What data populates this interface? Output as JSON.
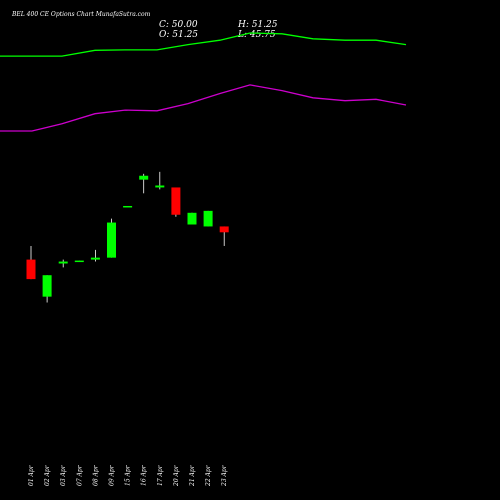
{
  "chart_data": {
    "type": "candlestick",
    "title": "BEL 400 CE Options Chart MunafaSutra.com",
    "ohlc_readout": {
      "c_label": "C: 50.00",
      "o_label": "O: 51.25",
      "h_label": "H: 51.25",
      "l_label": "L: 45.75"
    },
    "ylim": [
      0,
      150
    ],
    "candles": [
      {
        "date": "01 Apr",
        "open": 72,
        "close": 62,
        "high": 79,
        "low": 62
      },
      {
        "date": "02 Apr",
        "open": 53,
        "close": 64,
        "high": 64,
        "low": 50
      },
      {
        "date": "03 Apr",
        "open": 70,
        "close": 71,
        "high": 72,
        "low": 68
      },
      {
        "date": "07 Apr",
        "open": 71,
        "close": 71.5,
        "high": 71.5,
        "low": 71
      },
      {
        "date": "08 Apr",
        "open": 72,
        "close": 73,
        "high": 77,
        "low": 71
      },
      {
        "date": "09 Apr",
        "open": 73,
        "close": 91,
        "high": 93,
        "low": 73
      },
      {
        "date": "15 Apr",
        "open": 99,
        "close": 99.5,
        "high": 99.5,
        "low": 99
      },
      {
        "date": "16 Apr",
        "open": 113,
        "close": 115,
        "high": 116,
        "low": 106
      },
      {
        "date": "17 Apr",
        "open": 109,
        "close": 110,
        "high": 117,
        "low": 108
      },
      {
        "date": "20 Apr",
        "open": 109,
        "close": 95,
        "high": 109,
        "low": 94
      },
      {
        "date": "21 Apr",
        "open": 90,
        "close": 96,
        "high": 96,
        "low": 90
      },
      {
        "date": "22 Apr",
        "open": 89,
        "close": 97,
        "high": 97,
        "low": 89
      },
      {
        "date": "23 Apr",
        "open": 89,
        "close": 86,
        "high": 89,
        "low": 79
      }
    ],
    "upper_line": [
      218,
      218,
      218,
      222,
      223,
      224,
      229,
      233,
      240,
      240,
      238,
      235,
      234
    ],
    "lower_line": [
      166,
      166,
      174,
      183,
      187,
      186,
      192,
      201,
      210,
      205,
      198,
      196,
      197
    ],
    "line_x": [
      0,
      32,
      62,
      95,
      125,
      157,
      188,
      220,
      250,
      282,
      313,
      345,
      376,
      406
    ],
    "upper_line_full": [
      218,
      218,
      218,
      222,
      222.3,
      222.3,
      226,
      229,
      234,
      233.5,
      230,
      229,
      229,
      226
    ],
    "lower_line_full": [
      166,
      166,
      171,
      178,
      180.5,
      180,
      185,
      192,
      198,
      194,
      189,
      187,
      188,
      184
    ],
    "colors": {
      "up": "#00ff00",
      "down": "#ff0000",
      "upper_line": "#00ff00",
      "lower_line": "#cc00cc",
      "wick": "#ffffff",
      "text": "#ffffff"
    }
  }
}
